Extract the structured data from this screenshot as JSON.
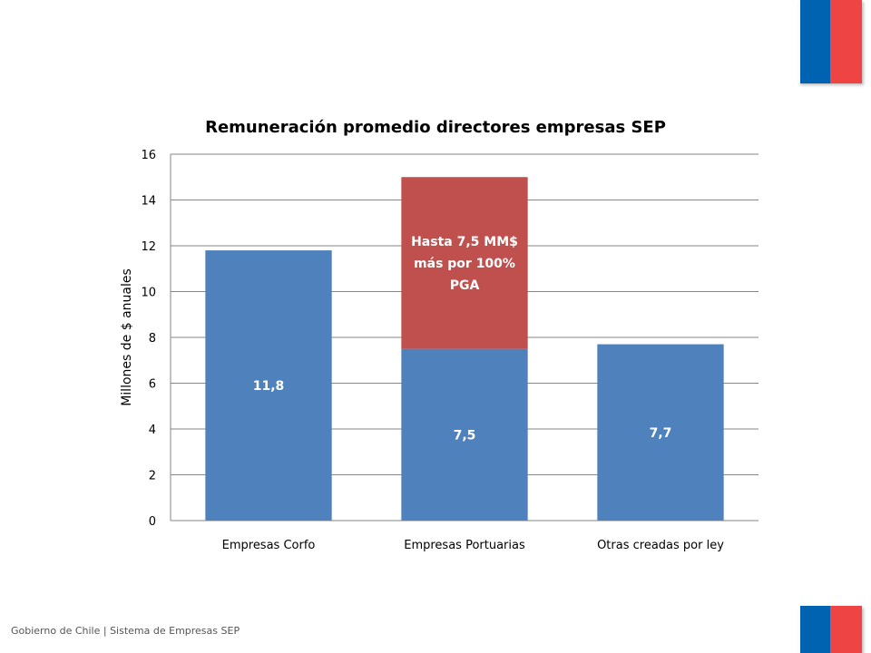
{
  "colors": {
    "series_base": "#4f81bd",
    "series_bonus": "#c0504d",
    "flag_blue": "#0063b1",
    "flag_red": "#ef4444",
    "gridline": "#868686"
  },
  "footer": {
    "text": "Gobierno de Chile | Sistema de Empresas SEP"
  },
  "chart_data": {
    "type": "bar",
    "stacked": true,
    "title": "Remuneración promedio directores empresas SEP",
    "xlabel": "",
    "ylabel": "Millones de $ anuales",
    "ylim": [
      0,
      16
    ],
    "yticks": [
      0,
      2,
      4,
      6,
      8,
      10,
      12,
      14,
      16
    ],
    "grid": true,
    "legend": "none",
    "categories": [
      "Empresas Corfo",
      "Empresas Portuarias",
      "Otras creadas por ley"
    ],
    "series": [
      {
        "values": [
          11.8,
          7.5,
          7.7
        ],
        "data_labels": [
          "11,8",
          "7,5",
          "7,7"
        ]
      },
      {
        "values": [
          0,
          7.5,
          0
        ],
        "data_labels": [
          "",
          "Hasta 7,5 MM$ más por 100% PGA",
          ""
        ]
      }
    ]
  }
}
